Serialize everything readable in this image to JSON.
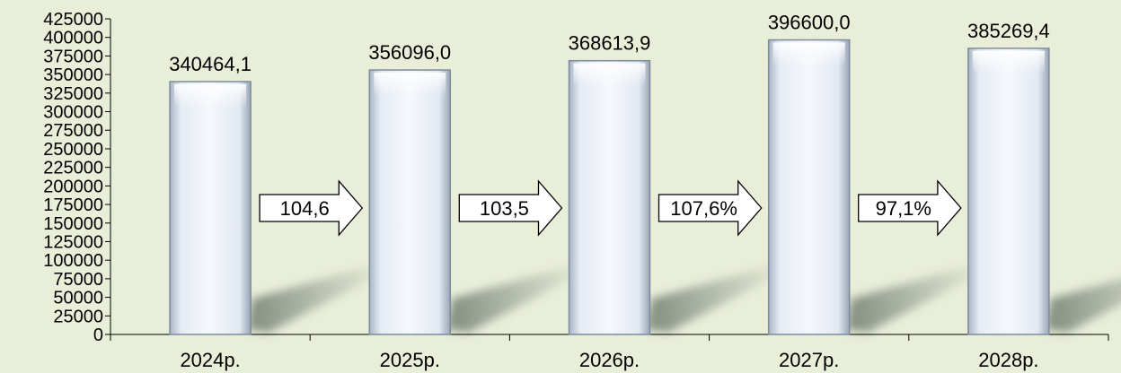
{
  "chart_data": {
    "type": "bar",
    "categories": [
      "2024р.",
      "2025р.",
      "2026р.",
      "2027р.",
      "2028р."
    ],
    "values": [
      340464.1,
      356096.0,
      368613.9,
      396600.0,
      385269.4
    ],
    "value_labels": [
      "340464,1",
      "356096,0",
      "368613,9",
      "396600,0",
      "385269,4"
    ],
    "yticks": [
      "0",
      "25000",
      "50000",
      "75000",
      "100000",
      "125000",
      "150000",
      "175000",
      "200000",
      "225000",
      "250000",
      "275000",
      "300000",
      "325000",
      "350000",
      "375000",
      "400000",
      "425000"
    ],
    "ylim": [
      0,
      425000
    ],
    "growth_arrows": [
      "104,6",
      "103,5",
      "107,6%",
      "97,1%"
    ],
    "grid": false,
    "title": "",
    "xlabel": "",
    "ylabel": ""
  },
  "colors": {
    "background": "#e9eed9",
    "bar_fill": "#f1f5fa",
    "bar_edge": "#8a98aa",
    "shadow": "#7e8a7e"
  }
}
